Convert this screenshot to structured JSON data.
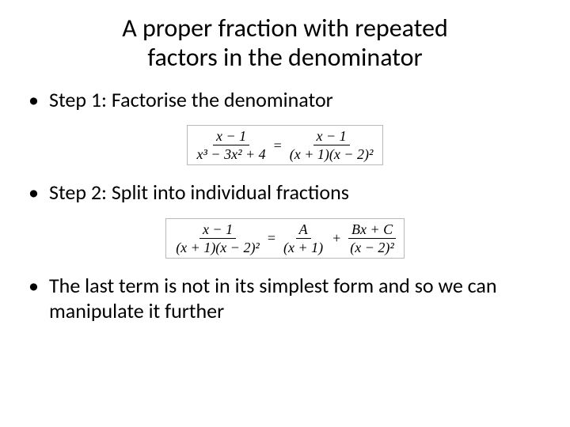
{
  "colors": {
    "background": "#ffffff",
    "text": "#000000",
    "eq_border": "#b9b9b9"
  },
  "typography": {
    "body_font": "Calibri",
    "math_font": "Times New Roman",
    "title_fontsize_pt": 32,
    "bullet_fontsize_pt": 26,
    "equation_fontsize_pt": 18
  },
  "title": {
    "line1": "A proper fraction with repeated",
    "line2": "factors in the denominator"
  },
  "bullets": {
    "step1": "Step 1: Factorise the denominator",
    "step2": "Step 2: Split into individual fractions",
    "note": "The last term is not in its simplest form and so we can manipulate it further"
  },
  "equations": {
    "eq1": {
      "left": {
        "num": "x − 1",
        "den": "x³ − 3x² + 4"
      },
      "op": "=",
      "right": {
        "num": "x − 1",
        "den": "(x + 1)(x − 2)²"
      }
    },
    "eq2": {
      "left": {
        "num": "x − 1",
        "den": "(x + 1)(x − 2)²"
      },
      "op": "=",
      "mid": {
        "num": "A",
        "den": "(x + 1)"
      },
      "plus": "+",
      "right": {
        "num": "Bx + C",
        "den": "(x − 2)²"
      }
    }
  }
}
